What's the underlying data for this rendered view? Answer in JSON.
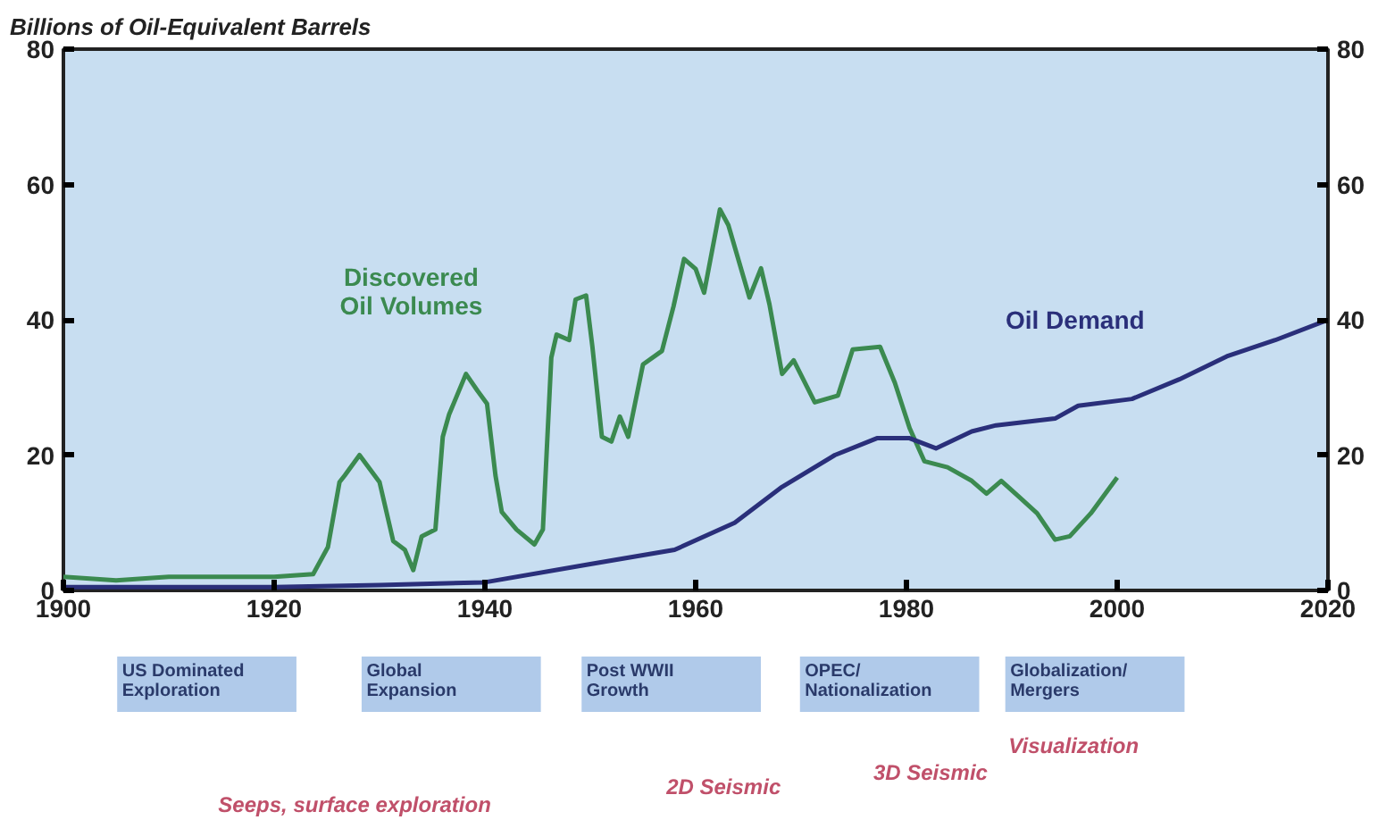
{
  "chart_data": {
    "type": "line",
    "title": "Billions of Oil-Equivalent Barrels",
    "xlim": [
      1900,
      2020
    ],
    "xticks": [
      1900,
      1920,
      1940,
      1960,
      1980,
      2000,
      2020
    ],
    "ylim": [
      0,
      80
    ],
    "yticks": [
      0,
      20,
      40,
      60,
      80
    ],
    "y2lim": [
      0,
      80
    ],
    "y2ticks": [
      0,
      20,
      40,
      60,
      80
    ],
    "grid": false,
    "line_style": "solid",
    "marker": "none",
    "series": [
      {
        "name": "Discovered\nOil Volumes",
        "color": "#3b8a50",
        "x": [
          1900,
          1905,
          1910,
          1915,
          1920,
          1923.7,
          1925.1,
          1926.2,
          1926.7,
          1928.1,
          1930,
          1931.3,
          1932.4,
          1933.2,
          1934,
          1935.3,
          1936,
          1936.6,
          1938.2,
          1939.3,
          1940.2,
          1941,
          1941.6,
          1943,
          1944.7,
          1945.5,
          1946.3,
          1946.8,
          1948,
          1948.6,
          1949.6,
          1950.2,
          1951.1,
          1952,
          1952.8,
          1953.6,
          1955,
          1956.8,
          1957.9,
          1958.9,
          1960,
          1960.8,
          1962.3,
          1963.1,
          1965.1,
          1966.2,
          1967,
          1968.2,
          1969.3,
          1971.3,
          1973.5,
          1974.9,
          1977.5,
          1978.9,
          1980.3,
          1981.7,
          1983.9,
          1986.2,
          1987.6,
          1989,
          1990.7,
          1992.4,
          1994.1,
          1995.5,
          1997.5,
          2000
        ],
        "values": [
          2,
          1.5,
          2,
          2,
          2,
          2.4,
          6.4,
          16,
          17,
          20,
          16,
          7.3,
          6,
          3,
          8,
          9,
          22.7,
          26,
          32,
          29.5,
          27.6,
          17,
          11.6,
          9,
          6.8,
          9,
          34.4,
          37.8,
          37,
          43,
          43.6,
          36,
          22.7,
          22,
          25.7,
          22.7,
          33.4,
          35.4,
          42,
          49,
          47.5,
          44,
          56.3,
          54,
          43.3,
          47.6,
          42.3,
          32,
          34,
          27.8,
          28.8,
          35.6,
          36,
          30.7,
          24,
          19.1,
          18.2,
          16.2,
          14.3,
          16.2,
          13.8,
          11.4,
          7.5,
          8,
          11.4,
          16.7
        ]
      },
      {
        "name": "Oil Demand",
        "color": "#2a2f7a",
        "x": [
          1900,
          1920,
          1930,
          1940,
          1950,
          1958,
          1963.7,
          1968.2,
          1973.2,
          1977.2,
          1980.3,
          1982.8,
          1986.2,
          1988.5,
          1994.1,
          1996.3,
          2001.4,
          2005.9,
          2010.4,
          2015,
          2020
        ],
        "values": [
          0.5,
          0.5,
          0.8,
          1.2,
          3.9,
          6,
          10,
          15.3,
          20,
          22.5,
          22.5,
          21,
          23.5,
          24.4,
          25.4,
          27.3,
          28.3,
          31.2,
          34.6,
          37,
          40
        ]
      }
    ],
    "annotations": [
      "US Dominated\nExploration",
      "Global\nExpansion",
      "Post WWII\nGrowth",
      "OPEC/\nNationalization",
      "Globalization/\nMergers",
      "Seeps, surface exploration",
      "2D Seismic",
      "3D Seismic",
      "Visualization"
    ]
  }
}
